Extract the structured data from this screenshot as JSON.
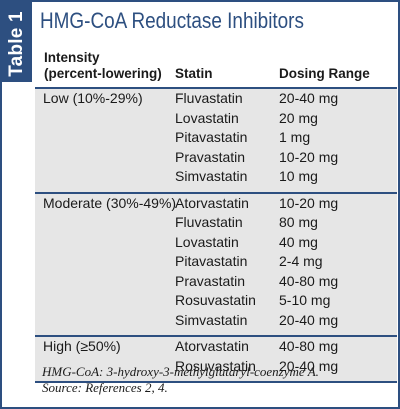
{
  "sidebar_label": "Table 1",
  "title": "HMG-CoA Reductase Inhibitors",
  "headers": {
    "intensity_line1": "Intensity",
    "intensity_line2": "(percent-lowering)",
    "statin": "Statin",
    "dosing": "Dosing Range"
  },
  "groups": [
    {
      "intensity": "Low (10%-29%)",
      "rows": [
        {
          "statin": "Fluvastatin",
          "dose": "20-40 mg"
        },
        {
          "statin": "Lovastatin",
          "dose": "20 mg"
        },
        {
          "statin": "Pitavastatin",
          "dose": "1 mg"
        },
        {
          "statin": "Pravastatin",
          "dose": "10-20 mg"
        },
        {
          "statin": "Simvastatin",
          "dose": "10 mg"
        }
      ]
    },
    {
      "intensity": "Moderate (30%-49%)",
      "rows": [
        {
          "statin": "Atorvastatin",
          "dose": "10-20 mg"
        },
        {
          "statin": "Fluvastatin",
          "dose": "80 mg"
        },
        {
          "statin": "Lovastatin",
          "dose": "40 mg"
        },
        {
          "statin": "Pitavastatin",
          "dose": "2-4 mg"
        },
        {
          "statin": "Pravastatin",
          "dose": "40-80 mg"
        },
        {
          "statin": "Rosuvastatin",
          "dose": "5-10 mg"
        },
        {
          "statin": "Simvastatin",
          "dose": "20-40 mg"
        }
      ]
    },
    {
      "intensity": "High (≥50%)",
      "rows": [
        {
          "statin": "Atorvastatin",
          "dose": "40-80 mg"
        },
        {
          "statin": "Rosuvastatin",
          "dose": "20-40 mg"
        }
      ]
    }
  ],
  "footer": {
    "line1": "HMG-CoA: 3-hydroxy-3-methylglutaryl-coenzyme A.",
    "line2": "Source: References 2, 4."
  },
  "colors": {
    "accent": "#2d4f80",
    "row_fill": "#e6e6e6"
  }
}
